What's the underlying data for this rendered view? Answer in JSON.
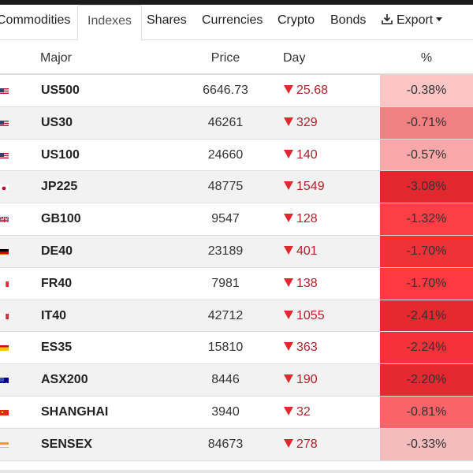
{
  "tabs": [
    {
      "label": "Commodities"
    },
    {
      "label": "Indexes"
    },
    {
      "label": "Shares"
    },
    {
      "label": "Currencies"
    },
    {
      "label": "Crypto"
    },
    {
      "label": "Bonds"
    }
  ],
  "export": {
    "label": "Export"
  },
  "table": {
    "headers": {
      "major": "Major",
      "price": "Price",
      "day": "Day",
      "pct": "%"
    },
    "rows": [
      {
        "symbol": "US500",
        "price": "6646.73",
        "day": "25.68",
        "pct": "-0.38%",
        "pct_bg": "#fbc5c6",
        "flag": "us-flag-icon"
      },
      {
        "symbol": "US30",
        "price": "46261",
        "day": "329",
        "pct": "-0.71%",
        "pct_bg": "#f08082",
        "flag": "us-flag-icon"
      },
      {
        "symbol": "US100",
        "price": "24660",
        "day": "140",
        "pct": "-0.57%",
        "pct_bg": "#f9a8aa",
        "flag": "us-flag-icon"
      },
      {
        "symbol": "JP225",
        "price": "48775",
        "day": "1549",
        "pct": "-3.08%",
        "pct_bg": "#e0282e",
        "flag": "japan-flag-icon"
      },
      {
        "symbol": "GB100",
        "price": "9547",
        "day": "128",
        "pct": "-1.32%",
        "pct_bg": "#fd3e44",
        "flag": "uk-flag-icon"
      },
      {
        "symbol": "DE40",
        "price": "23189",
        "day": "401",
        "pct": "-1.70%",
        "pct_bg": "#ef3238",
        "flag": "germany-flag-icon"
      },
      {
        "symbol": "FR40",
        "price": "7981",
        "day": "138",
        "pct": "-1.70%",
        "pct_bg": "#fd3a40",
        "flag": "france-flag-icon"
      },
      {
        "symbol": "IT40",
        "price": "42712",
        "day": "1055",
        "pct": "-2.41%",
        "pct_bg": "#e6292f",
        "flag": "italy-flag-icon"
      },
      {
        "symbol": "ES35",
        "price": "15810",
        "day": "363",
        "pct": "-2.24%",
        "pct_bg": "#f43238",
        "flag": "spain-flag-icon"
      },
      {
        "symbol": "ASX200",
        "price": "8446",
        "day": "190",
        "pct": "-2.20%",
        "pct_bg": "#e42a30",
        "flag": "australia-flag-icon"
      },
      {
        "symbol": "SHANGHAI",
        "price": "3940",
        "day": "32",
        "pct": "-0.81%",
        "pct_bg": "#f86468",
        "flag": "china-flag-icon"
      },
      {
        "symbol": "SENSEX",
        "price": "84673",
        "day": "278",
        "pct": "-0.33%",
        "pct_bg": "#f4bcbd",
        "flag": "india-flag-icon"
      }
    ]
  },
  "colors": {
    "down": "#e0282e",
    "down_text": "#b0222a"
  }
}
